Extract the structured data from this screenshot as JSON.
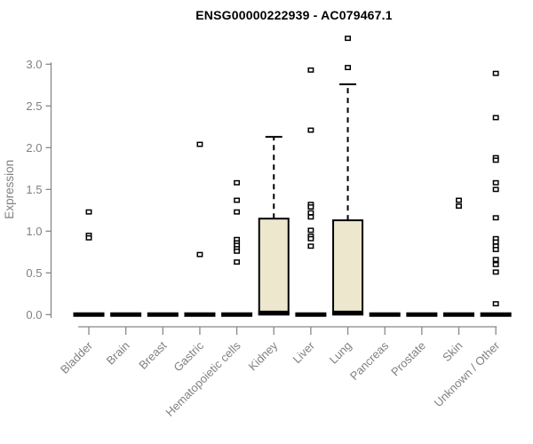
{
  "chart_data": {
    "type": "boxplot",
    "title": "ENSG00000222939 - AC079467.1",
    "ylabel": "Expression",
    "xlabel": "",
    "ylim": [
      0,
      3.35
    ],
    "yticks": [
      "0.0",
      "0.5",
      "1.0",
      "1.5",
      "2.0",
      "2.5",
      "3.0"
    ],
    "grid": false,
    "legend": false,
    "categories": [
      "Bladder",
      "Brain",
      "Breast",
      "Gastric",
      "Hematopoietic cells",
      "Kidney",
      "Liver",
      "Lung",
      "Pancreas",
      "Prostate",
      "Skin",
      "Unknown / Other"
    ],
    "series": [
      {
        "category": "Bladder",
        "q1": 0,
        "median": 0,
        "q3": 0,
        "whisker_low": 0,
        "whisker_high": 0,
        "outliers": [
          1.23,
          0.95,
          0.92
        ]
      },
      {
        "category": "Brain",
        "q1": 0,
        "median": 0,
        "q3": 0,
        "whisker_low": 0,
        "whisker_high": 0,
        "outliers": []
      },
      {
        "category": "Breast",
        "q1": 0,
        "median": 0,
        "q3": 0,
        "whisker_low": 0,
        "whisker_high": 0,
        "outliers": []
      },
      {
        "category": "Gastric",
        "q1": 0,
        "median": 0,
        "q3": 0,
        "whisker_low": 0,
        "whisker_high": 0,
        "outliers": [
          2.04,
          0.72
        ]
      },
      {
        "category": "Hematopoietic cells",
        "q1": 0,
        "median": 0,
        "q3": 0,
        "whisker_low": 0,
        "whisker_high": 0,
        "outliers": [
          1.58,
          1.37,
          1.23,
          0.9,
          0.86,
          0.83,
          0.79,
          0.76,
          0.63
        ]
      },
      {
        "category": "Kidney",
        "q1": 0,
        "median": 0.02,
        "q3": 1.15,
        "whisker_low": 0,
        "whisker_high": 2.13,
        "outliers": []
      },
      {
        "category": "Liver",
        "q1": 0,
        "median": 0,
        "q3": 0,
        "whisker_low": 0,
        "whisker_high": 0,
        "outliers": [
          2.93,
          2.21,
          1.32,
          1.29,
          1.22,
          1.17,
          1.01,
          0.94,
          0.91,
          0.82
        ]
      },
      {
        "category": "Lung",
        "q1": 0,
        "median": 0.02,
        "q3": 1.13,
        "whisker_low": 0,
        "whisker_high": 2.76,
        "outliers": [
          3.31,
          2.96
        ]
      },
      {
        "category": "Pancreas",
        "q1": 0,
        "median": 0,
        "q3": 0,
        "whisker_low": 0,
        "whisker_high": 0,
        "outliers": []
      },
      {
        "category": "Prostate",
        "q1": 0,
        "median": 0,
        "q3": 0,
        "whisker_low": 0,
        "whisker_high": 0,
        "outliers": []
      },
      {
        "category": "Skin",
        "q1": 0,
        "median": 0,
        "q3": 0,
        "whisker_low": 0,
        "whisker_high": 0,
        "outliers": [
          1.37,
          1.3
        ]
      },
      {
        "category": "Unknown / Other",
        "q1": 0,
        "median": 0,
        "q3": 0,
        "whisker_low": 0,
        "whisker_high": 0,
        "outliers": [
          2.89,
          2.36,
          1.88,
          1.85,
          1.58,
          1.5,
          1.16,
          0.91,
          0.87,
          0.82,
          0.78,
          0.66,
          0.6,
          0.51,
          0.13
        ]
      }
    ],
    "colors": {
      "box_fill": "#EDE7CE",
      "box_stroke": "#000000",
      "axis": "#888888",
      "tick_text": "#808080",
      "title_text": "#000000",
      "outlier_fill": "#FFFFFF",
      "background": "#FFFFFF"
    }
  }
}
